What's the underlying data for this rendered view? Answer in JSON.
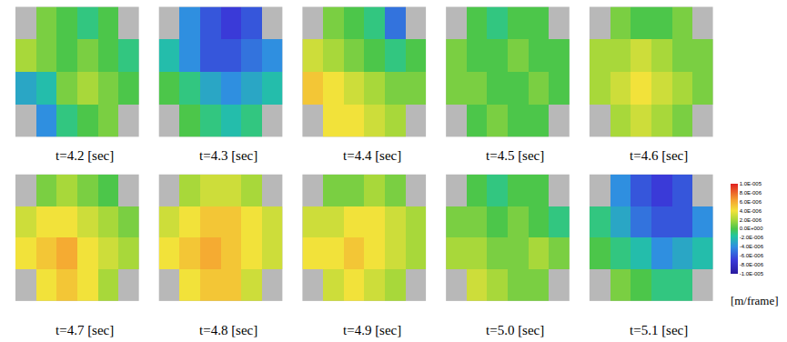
{
  "chart_data": {
    "type": "heatmap",
    "tick_labels": false,
    "panels": [
      {
        "label": "t=4.2 [sec]",
        "z": [
          [
            null,
            1e-06,
            0,
            -1e-06,
            0,
            null
          ],
          [
            2e-06,
            1e-06,
            0,
            1e-06,
            0,
            -1e-06
          ],
          [
            -3e-06,
            -2e-06,
            1e-06,
            2e-06,
            1e-06,
            0
          ],
          [
            null,
            -4e-06,
            -1e-06,
            0,
            1e-06,
            null
          ]
        ]
      },
      {
        "label": "t=4.3 [sec]",
        "z": [
          [
            null,
            -4e-06,
            -6e-06,
            -7e-06,
            -6e-06,
            null
          ],
          [
            -2e-06,
            -4e-06,
            -6e-06,
            -6e-06,
            -5e-06,
            -4e-06
          ],
          [
            0,
            -1e-06,
            -3e-06,
            -4e-06,
            -3e-06,
            -2e-06
          ],
          [
            null,
            0,
            -1e-06,
            -2e-06,
            -1e-06,
            null
          ]
        ]
      },
      {
        "label": "t=4.4 [sec]",
        "z": [
          [
            null,
            1e-06,
            0,
            -1e-06,
            -5e-06,
            null
          ],
          [
            3e-06,
            2e-06,
            1e-06,
            0,
            -1e-06,
            0
          ],
          [
            5e-06,
            4e-06,
            3e-06,
            2e-06,
            1e-06,
            1e-06
          ],
          [
            null,
            4e-06,
            4e-06,
            3e-06,
            2e-06,
            null
          ]
        ]
      },
      {
        "label": "t=4.5 [sec]",
        "z": [
          [
            null,
            0,
            -1e-06,
            0,
            0,
            null
          ],
          [
            1e-06,
            0,
            0,
            1e-06,
            0,
            0
          ],
          [
            1e-06,
            1e-06,
            0,
            0,
            1e-06,
            0
          ],
          [
            null,
            0,
            1e-06,
            0,
            0,
            null
          ]
        ]
      },
      {
        "label": "t=4.6 [sec]",
        "z": [
          [
            null,
            1e-06,
            0,
            0,
            1e-06,
            null
          ],
          [
            2e-06,
            2e-06,
            3e-06,
            2e-06,
            1e-06,
            1e-06
          ],
          [
            2e-06,
            3e-06,
            4e-06,
            3e-06,
            2e-06,
            1e-06
          ],
          [
            null,
            2e-06,
            3e-06,
            2e-06,
            1e-06,
            null
          ]
        ]
      },
      {
        "label": "t=4.7 [sec]",
        "z": [
          [
            null,
            1e-06,
            2e-06,
            1e-06,
            0,
            null
          ],
          [
            3e-06,
            4e-06,
            4e-06,
            3e-06,
            2e-06,
            1e-06
          ],
          [
            4e-06,
            5e-06,
            6e-06,
            4e-06,
            3e-06,
            2e-06
          ],
          [
            null,
            4e-06,
            5e-06,
            4e-06,
            2e-06,
            null
          ]
        ]
      },
      {
        "label": "t=4.8 [sec]",
        "z": [
          [
            null,
            2e-06,
            3e-06,
            3e-06,
            2e-06,
            null
          ],
          [
            3e-06,
            4e-06,
            5e-06,
            5e-06,
            4e-06,
            3e-06
          ],
          [
            4e-06,
            5e-06,
            6e-06,
            5e-06,
            4e-06,
            3e-06
          ],
          [
            null,
            4e-06,
            5e-06,
            5e-06,
            3e-06,
            null
          ]
        ]
      },
      {
        "label": "t=4.9 [sec]",
        "z": [
          [
            null,
            1e-06,
            1e-06,
            2e-06,
            1e-06,
            null
          ],
          [
            3e-06,
            3e-06,
            4e-06,
            4e-06,
            3e-06,
            2e-06
          ],
          [
            4e-06,
            4e-06,
            5e-06,
            4e-06,
            3e-06,
            2e-06
          ],
          [
            null,
            3e-06,
            4e-06,
            3e-06,
            2e-06,
            null
          ]
        ]
      },
      {
        "label": "t=5.0 [sec]",
        "z": [
          [
            null,
            0,
            -1e-06,
            0,
            0,
            null
          ],
          [
            1e-06,
            1e-06,
            0,
            1e-06,
            0,
            -1e-06
          ],
          [
            2e-06,
            2e-06,
            1e-06,
            1e-06,
            2e-06,
            1e-06
          ],
          [
            null,
            3e-06,
            2e-06,
            1e-06,
            1e-06,
            null
          ]
        ]
      },
      {
        "label": "t=5.1 [sec]",
        "z": [
          [
            null,
            -4e-06,
            -6e-06,
            -7e-06,
            -6e-06,
            null
          ],
          [
            -1e-06,
            -3e-06,
            -5e-06,
            -6e-06,
            -6e-06,
            -4e-06
          ],
          [
            0,
            -1e-06,
            -2e-06,
            -4e-06,
            -3e-06,
            -2e-06
          ],
          [
            null,
            1e-06,
            0,
            -1e-06,
            -1e-06,
            null
          ]
        ]
      }
    ],
    "colorbar": {
      "title": "[m/frame]",
      "range": [
        -1e-05,
        1e-05
      ],
      "ticks": [
        {
          "value": 1e-05,
          "label": "1.0E-005"
        },
        {
          "value": 8e-06,
          "label": "8.0E-006"
        },
        {
          "value": 6e-06,
          "label": "6.0E-006"
        },
        {
          "value": 4e-06,
          "label": "4.0E-006"
        },
        {
          "value": 2e-06,
          "label": "2.0E-006"
        },
        {
          "value": 0,
          "label": "0.0E+000"
        },
        {
          "value": -2e-06,
          "label": "-2.0E-006"
        },
        {
          "value": -4e-06,
          "label": "-4.0E-006"
        },
        {
          "value": -6e-06,
          "label": "-6.0E-006"
        },
        {
          "value": -8e-06,
          "label": "-8.0E-006"
        },
        {
          "value": -1e-05,
          "label": "-1.0E-005"
        }
      ]
    }
  }
}
